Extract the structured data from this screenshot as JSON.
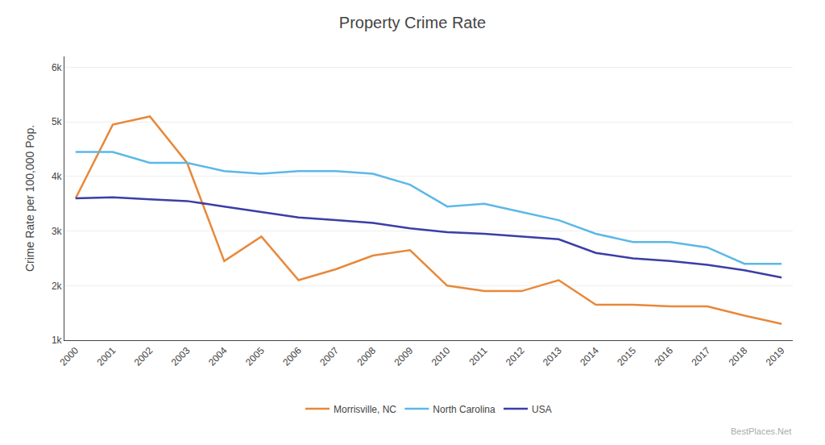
{
  "chart_data": {
    "type": "line",
    "title": "Property Crime Rate",
    "ylabel": "Crime Rate per 100,000 Pop.",
    "x": [
      2000,
      2001,
      2002,
      2003,
      2004,
      2005,
      2006,
      2007,
      2008,
      2009,
      2010,
      2011,
      2012,
      2013,
      2014,
      2015,
      2016,
      2017,
      2018,
      2019
    ],
    "series": [
      {
        "name": "Morrisville, NC",
        "color": "#E8883A",
        "values": [
          3600,
          4950,
          5100,
          4250,
          2450,
          2900,
          2100,
          2300,
          2550,
          2650,
          2000,
          1900,
          1900,
          2100,
          1650,
          1650,
          1620,
          1620,
          1450,
          1300
        ]
      },
      {
        "name": "North Carolina",
        "color": "#5BB8E8",
        "values": [
          4450,
          4450,
          4250,
          4250,
          4100,
          4050,
          4100,
          4100,
          4050,
          3850,
          3450,
          3500,
          3350,
          3200,
          2950,
          2800,
          2800,
          2700,
          2400,
          2400
        ]
      },
      {
        "name": "USA",
        "color": "#3B3EA6",
        "values": [
          3600,
          3620,
          3580,
          3550,
          3450,
          3350,
          3250,
          3200,
          3150,
          3050,
          2980,
          2950,
          2900,
          2850,
          2600,
          2500,
          2450,
          2380,
          2280,
          2150
        ]
      }
    ],
    "xlim": [
      1999.7,
      2019.3
    ],
    "xticks": [
      2000,
      2001,
      2002,
      2003,
      2004,
      2005,
      2006,
      2007,
      2008,
      2009,
      2010,
      2011,
      2012,
      2013,
      2014,
      2015,
      2016,
      2017,
      2018,
      2019
    ],
    "ylim": [
      1000,
      6200
    ],
    "yticks": [
      {
        "value": 1000,
        "label": "1k"
      },
      {
        "value": 2000,
        "label": "2k"
      },
      {
        "value": 3000,
        "label": "3k"
      },
      {
        "value": 4000,
        "label": "4k"
      },
      {
        "value": 5000,
        "label": "5k"
      },
      {
        "value": 6000,
        "label": "6k"
      }
    ],
    "grid": true,
    "legend": "bottom",
    "annotations": [
      "BestPlaces.Net"
    ]
  }
}
